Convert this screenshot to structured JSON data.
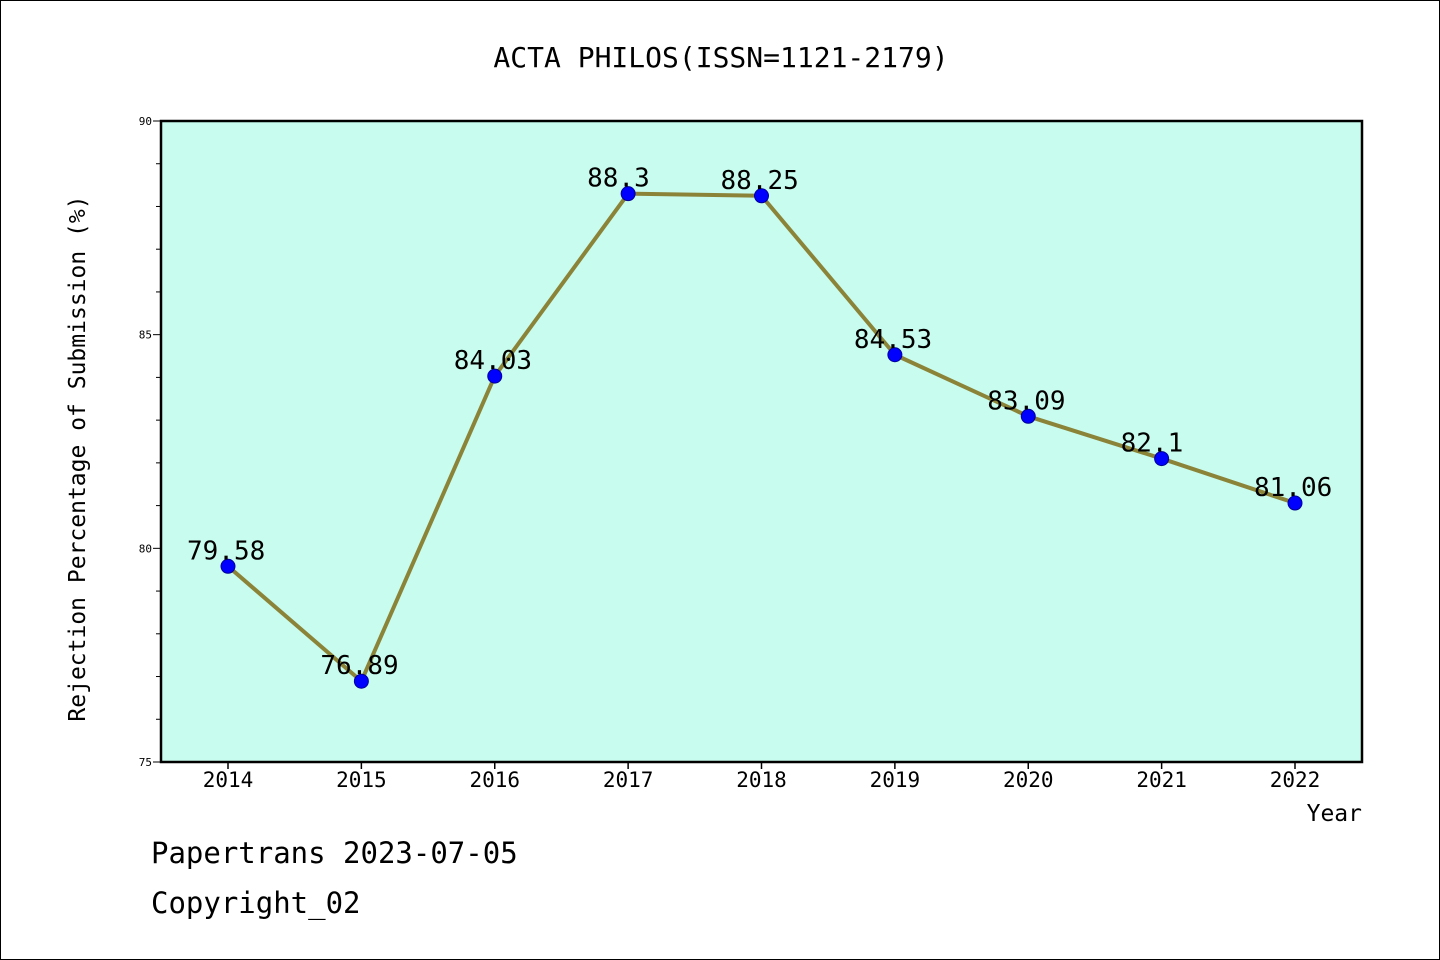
{
  "colors": {
    "plot_background": "#c8fcee",
    "line": "#8b8338",
    "marker": "#0000ff",
    "marker_edge": "#000099",
    "frame": "#000000"
  },
  "chart_data": {
    "type": "line",
    "title": "ACTA PHILOS(ISSN=1121-2179)",
    "xlabel": "Year",
    "ylabel": "Rejection Percentage of Submission (%)",
    "categories": [
      "2014",
      "2015",
      "2016",
      "2017",
      "2018",
      "2019",
      "2020",
      "2021",
      "2022"
    ],
    "series": [
      {
        "values": [
          79.58,
          76.89,
          84.03,
          88.3,
          88.25,
          84.53,
          83.09,
          82.1,
          81.06
        ],
        "labels": [
          "79.58",
          "76.89",
          "84.03",
          "88.3",
          "88.25",
          "84.53",
          "83.09",
          "82.1",
          "81.06"
        ]
      }
    ],
    "ylim": [
      75,
      90
    ],
    "y_major_ticks": [
      75,
      80,
      85,
      90
    ],
    "y_minor_tick_step": 1,
    "grid": false,
    "legend": "none"
  },
  "footer": {
    "line1": "Papertrans 2023-07-05",
    "line2": "Copyright_02"
  }
}
